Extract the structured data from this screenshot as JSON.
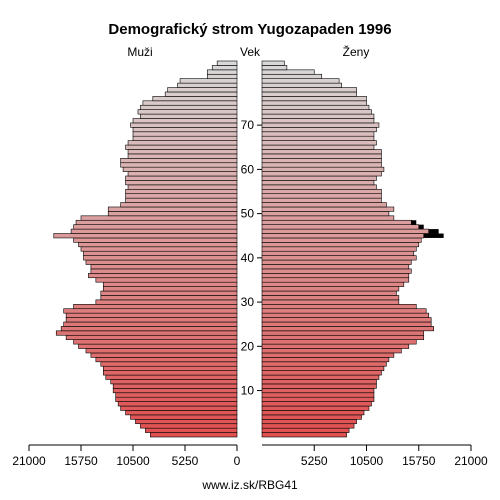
{
  "chart_data": {
    "type": "bar",
    "subtype": "population-pyramid",
    "title": "Demografický strom Yugozapaden 1996",
    "labels": {
      "male": "Muži",
      "age": "Vek",
      "female": "Ženy"
    },
    "x_ticks_male": [
      "21000",
      "15750",
      "10500",
      "5250",
      "0"
    ],
    "x_ticks_female": [
      "5250",
      "10500",
      "15750",
      "21000"
    ],
    "y_ticks": [
      "10",
      "20",
      "30",
      "40",
      "50",
      "60",
      "70"
    ],
    "xlim": [
      0,
      21000
    ],
    "age_range": [
      0,
      85
    ],
    "source": "www.iz.sk/RBG41",
    "colors": {
      "young": "#e05050",
      "old": "#d8d8d8",
      "excess": "#000000",
      "outline": "#000000"
    },
    "male": [
      8750,
      9250,
      9750,
      10250,
      10750,
      11250,
      11750,
      12000,
      12250,
      12250,
      12500,
      12500,
      12750,
      13250,
      13500,
      13500,
      13750,
      14250,
      14750,
      15250,
      16000,
      16500,
      17250,
      18250,
      17750,
      17500,
      17250,
      17250,
      17500,
      16500,
      14250,
      13750,
      13750,
      13500,
      13500,
      14250,
      15000,
      14750,
      14750,
      15250,
      15500,
      15500,
      15750,
      16000,
      16500,
      18500,
      16750,
      16500,
      16250,
      15750,
      13000,
      13000,
      11750,
      11250,
      11250,
      11250,
      11000,
      11250,
      11250,
      11000,
      11500,
      11750,
      11750,
      11000,
      11000,
      11250,
      11000,
      10500,
      10500,
      10500,
      10750,
      10500,
      9750,
      10000,
      9750,
      9500,
      8500,
      7250,
      7000,
      6000,
      5750,
      3000,
      3000,
      2500,
      2000
    ],
    "female": [
      8500,
      8750,
      9250,
      9500,
      10000,
      10250,
      10750,
      11000,
      11250,
      11250,
      11250,
      11500,
      11500,
      11750,
      12000,
      12250,
      12500,
      12750,
      13250,
      14000,
      14750,
      15500,
      16250,
      16250,
      17250,
      17000,
      17000,
      16750,
      16500,
      15500,
      13750,
      13750,
      13500,
      13750,
      14250,
      14750,
      14750,
      15000,
      14750,
      15000,
      15500,
      15250,
      15500,
      15750,
      16000,
      16250,
      16750,
      15750,
      15000,
      13250,
      12750,
      13250,
      12500,
      12000,
      12000,
      12000,
      11500,
      11250,
      11500,
      12000,
      12250,
      12000,
      12000,
      12000,
      12000,
      11250,
      11500,
      11250,
      11250,
      11500,
      11750,
      11250,
      11250,
      11000,
      10750,
      10500,
      10500,
      9500,
      9500,
      8000,
      7750,
      6000,
      5250,
      2500,
      2250
    ],
    "female_excess": [
      0,
      0,
      0,
      0,
      0,
      0,
      0,
      0,
      0,
      0,
      0,
      0,
      0,
      0,
      0,
      0,
      0,
      0,
      0,
      0,
      0,
      0,
      0,
      0,
      0,
      0,
      0,
      0,
      0,
      0,
      0,
      0,
      0,
      0,
      0,
      0,
      0,
      0,
      0,
      0,
      0,
      0,
      0,
      0,
      0,
      2000,
      1000,
      500,
      500,
      0,
      0,
      0,
      0,
      0,
      0,
      0,
      0,
      0,
      0,
      0,
      0,
      0,
      0,
      0,
      0,
      0,
      0,
      0,
      0,
      0,
      0,
      0,
      0,
      0,
      0,
      0,
      0,
      0,
      0,
      0,
      0,
      0,
      0,
      0,
      0,
      0
    ]
  }
}
